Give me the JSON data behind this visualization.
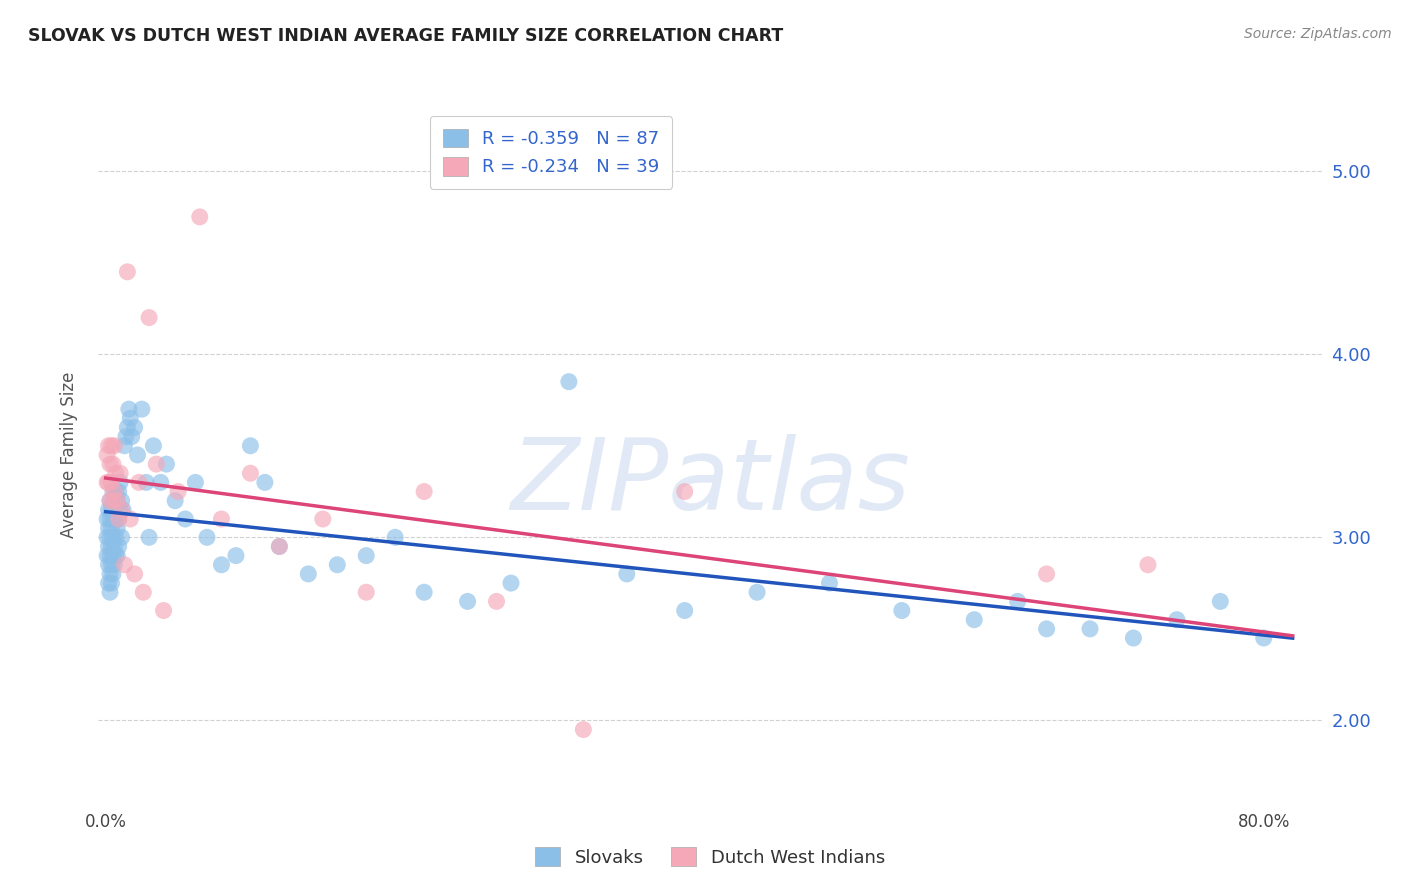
{
  "title": "SLOVAK VS DUTCH WEST INDIAN AVERAGE FAMILY SIZE CORRELATION CHART",
  "source": "Source: ZipAtlas.com",
  "ylabel": "Average Family Size",
  "background_color": "#ffffff",
  "grid_color": "#cccccc",
  "watermark": "ZIPatlas",
  "slovak_color": "#8bbfe8",
  "dutch_color": "#f4a8b8",
  "slovak_line_color": "#2255bb",
  "dutch_line_color": "#dd4477",
  "legend_slovak_R": "R = -0.359",
  "legend_slovak_N": "N = 87",
  "legend_dutch_R": "R = -0.234",
  "legend_dutch_N": "N = 39",
  "ylim": [
    1.55,
    5.35
  ],
  "xlim": [
    -0.005,
    0.84
  ],
  "yticks_right": [
    2.0,
    3.0,
    4.0,
    5.0
  ],
  "xticks": [
    0.0,
    0.1,
    0.2,
    0.3,
    0.4,
    0.5,
    0.6,
    0.7,
    0.8
  ],
  "xtick_labels": [
    "0.0%",
    "",
    "",
    "",
    "",
    "",
    "",
    "",
    "80.0%"
  ],
  "slovak_x": [
    0.001,
    0.001,
    0.001,
    0.002,
    0.002,
    0.002,
    0.002,
    0.002,
    0.003,
    0.003,
    0.003,
    0.003,
    0.003,
    0.003,
    0.004,
    0.004,
    0.004,
    0.004,
    0.004,
    0.005,
    0.005,
    0.005,
    0.005,
    0.005,
    0.006,
    0.006,
    0.006,
    0.006,
    0.007,
    0.007,
    0.007,
    0.007,
    0.008,
    0.008,
    0.008,
    0.009,
    0.009,
    0.009,
    0.01,
    0.01,
    0.011,
    0.011,
    0.012,
    0.013,
    0.014,
    0.015,
    0.016,
    0.017,
    0.018,
    0.02,
    0.022,
    0.025,
    0.028,
    0.03,
    0.033,
    0.038,
    0.042,
    0.048,
    0.055,
    0.062,
    0.07,
    0.08,
    0.09,
    0.1,
    0.11,
    0.12,
    0.14,
    0.16,
    0.18,
    0.2,
    0.22,
    0.25,
    0.28,
    0.32,
    0.36,
    0.4,
    0.45,
    0.5,
    0.55,
    0.6,
    0.63,
    0.65,
    0.68,
    0.71,
    0.74,
    0.77,
    0.8
  ],
  "slovak_y": [
    3.1,
    3.0,
    2.9,
    3.15,
    3.05,
    2.95,
    2.85,
    2.75,
    3.2,
    3.1,
    3.0,
    2.9,
    2.8,
    2.7,
    3.15,
    3.05,
    2.95,
    2.85,
    2.75,
    3.25,
    3.1,
    3.0,
    2.9,
    2.8,
    3.2,
    3.1,
    2.95,
    2.85,
    3.25,
    3.1,
    3.0,
    2.9,
    3.2,
    3.05,
    2.9,
    3.25,
    3.1,
    2.95,
    3.3,
    3.15,
    3.2,
    3.0,
    3.15,
    3.5,
    3.55,
    3.6,
    3.7,
    3.65,
    3.55,
    3.6,
    3.45,
    3.7,
    3.3,
    3.0,
    3.5,
    3.3,
    3.4,
    3.2,
    3.1,
    3.3,
    3.0,
    2.85,
    2.9,
    3.5,
    3.3,
    2.95,
    2.8,
    2.85,
    2.9,
    3.0,
    2.7,
    2.65,
    2.75,
    3.85,
    2.8,
    2.6,
    2.7,
    2.75,
    2.6,
    2.55,
    2.65,
    2.5,
    2.5,
    2.45,
    2.55,
    2.65,
    2.45
  ],
  "dutch_x": [
    0.001,
    0.001,
    0.002,
    0.002,
    0.003,
    0.003,
    0.004,
    0.004,
    0.005,
    0.005,
    0.006,
    0.006,
    0.007,
    0.008,
    0.009,
    0.01,
    0.011,
    0.013,
    0.015,
    0.017,
    0.02,
    0.023,
    0.026,
    0.03,
    0.035,
    0.04,
    0.05,
    0.065,
    0.08,
    0.1,
    0.12,
    0.15,
    0.18,
    0.22,
    0.27,
    0.33,
    0.65,
    0.72,
    0.4
  ],
  "dutch_y": [
    3.45,
    3.3,
    3.5,
    3.3,
    3.4,
    3.2,
    3.5,
    3.3,
    3.4,
    3.2,
    3.5,
    3.25,
    3.35,
    3.2,
    3.1,
    3.35,
    3.15,
    2.85,
    4.45,
    3.1,
    2.8,
    3.3,
    2.7,
    4.2,
    3.4,
    2.6,
    3.25,
    4.75,
    3.1,
    3.35,
    2.95,
    3.1,
    2.7,
    3.25,
    2.65,
    1.95,
    2.8,
    2.85,
    3.25
  ]
}
